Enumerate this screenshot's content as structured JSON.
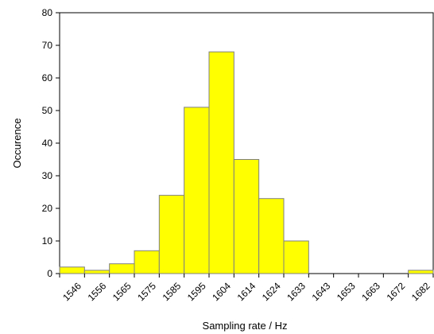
{
  "chart_data": {
    "type": "bar",
    "title": "",
    "xlabel": "Sampling rate / Hz",
    "ylabel": "Occurence",
    "ylim": [
      0,
      80
    ],
    "yticks": [
      0,
      10,
      20,
      30,
      40,
      50,
      60,
      70,
      80
    ],
    "categories": [
      "1546",
      "1556",
      "1565",
      "1575",
      "1585",
      "1595",
      "1604",
      "1614",
      "1624",
      "1633",
      "1643",
      "1653",
      "1663",
      "1672",
      "1682"
    ],
    "values": [
      2,
      1,
      3,
      7,
      24,
      51,
      68,
      35,
      23,
      10,
      0,
      0,
      0,
      0,
      1
    ],
    "bar_color": "#ffff00",
    "bar_edge_color": "#808080",
    "grid": false,
    "legend": "none"
  }
}
